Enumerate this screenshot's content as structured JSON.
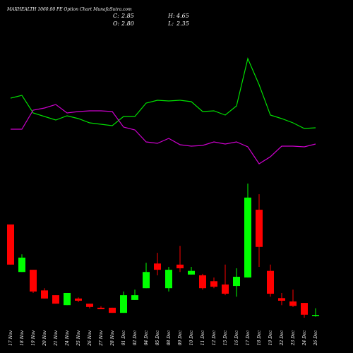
{
  "chart_data": {
    "type": "candlestick",
    "title": "MAXHEALTH 1060.00 PE Option Chart MunafaSutra.com",
    "stats": [
      {
        "label": "C:",
        "value": 2.85
      },
      {
        "label": "H:",
        "value": 4.65
      },
      {
        "label": "O:",
        "value": {
          "value": 2.8,
          "label": "2.80"
        }
      },
      {
        "label": "L:",
        "value": 2.35
      }
    ],
    "categories": [
      "17 Nov",
      "18 Nov",
      "19 Nov",
      "20 Nov",
      "21 Nov",
      "24 Nov",
      "25 Nov",
      "26 Nov",
      "27 Nov",
      "28 Nov",
      "01 Dec",
      "02 Dec",
      "04 Dec",
      "05 Dec",
      "08 Dec",
      "09 Dec",
      "10 Dec",
      "11 Dec",
      "12 Dec",
      "15 Dec",
      "16 Dec",
      "17 Dec",
      "18 Dec",
      "19 Dec",
      "22 Dec",
      "23 Dec",
      "24 Dec",
      "26 Dec"
    ],
    "open": [
      27.4,
      14.5,
      15.1,
      9.5,
      8.2,
      5.5,
      7.3,
      5.9,
      4.8,
      4.8,
      3.4,
      6.9,
      10.1,
      16.8,
      10.1,
      16.5,
      13.8,
      13.6,
      12.0,
      11.1,
      10.7,
      13.0,
      31.4,
      14.8,
      7.4,
      6.5,
      6.1,
      2.8
    ],
    "high": [
      27.4,
      19.3,
      15.1,
      10.1,
      8.2,
      8.8,
      7.6,
      5.9,
      5.2,
      4.8,
      9.2,
      9.7,
      17.0,
      19.7,
      15.9,
      21.6,
      15.9,
      14.0,
      13.0,
      16.5,
      15.5,
      38.5,
      35.6,
      16.5,
      8.8,
      9.7,
      6.1,
      4.65
    ],
    "low": [
      16.5,
      14.5,
      8.8,
      7.3,
      5.9,
      5.5,
      6.3,
      4.6,
      4.4,
      3.4,
      3.4,
      6.9,
      10.1,
      13.6,
      9.2,
      14.5,
      13.8,
      9.7,
      10.1,
      8.2,
      7.8,
      13.0,
      15.9,
      7.8,
      5.5,
      5.0,
      2.1,
      2.35
    ],
    "close": [
      16.5,
      18.4,
      9.2,
      7.3,
      5.9,
      8.8,
      6.7,
      5.0,
      4.4,
      3.4,
      8.2,
      8.2,
      14.5,
      15.1,
      15.1,
      15.5,
      14.8,
      10.1,
      10.5,
      8.6,
      13.2,
      34.7,
      21.3,
      8.6,
      6.7,
      5.3,
      2.9,
      2.85
    ],
    "up_color": "#00ff00",
    "down_color": "#ff0000",
    "ylim": [
      0,
      40
    ],
    "lines": [
      {
        "color": "#00e000",
        "values": [
          161,
          165,
          140,
          135,
          130,
          136,
          132,
          126,
          124,
          122,
          135,
          135,
          154,
          158,
          157,
          158,
          156,
          142,
          143,
          137,
          150,
          217,
          180,
          137,
          132,
          126,
          118,
          119
        ]
      },
      {
        "color": "#cc00cc",
        "values": [
          117,
          117,
          144,
          147,
          152,
          140,
          142,
          143,
          143,
          142,
          120,
          116,
          99,
          97,
          104,
          95,
          93,
          94,
          99,
          96,
          99,
          92,
          68,
          78,
          93,
          93,
          92,
          96
        ]
      }
    ],
    "lines_ylim": [
      0,
      300
    ]
  }
}
